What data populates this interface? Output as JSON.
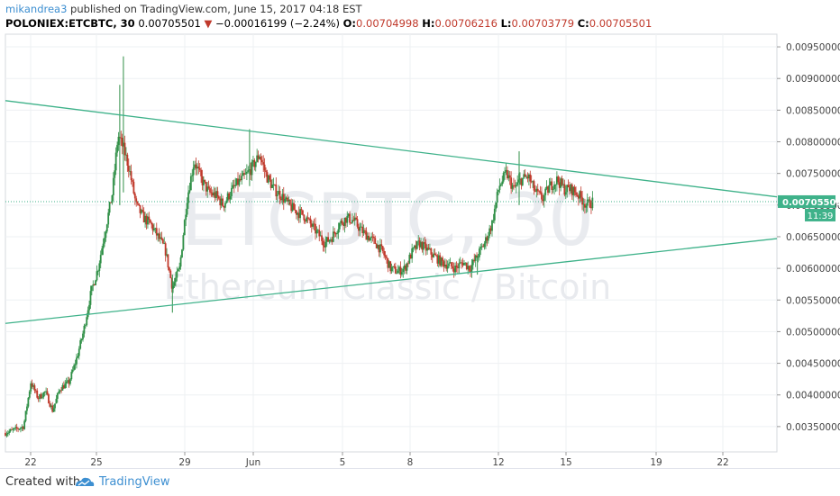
{
  "header": {
    "author": "mikandrea3",
    "published_text": " published on TradingView.com, June 15, 2017 04:18 EST",
    "symbol": "POLONIEX:ETCBTC, 30",
    "last": "0.00705501",
    "change_arrow": "▼",
    "change": "−0.00016199 (−2.24%)",
    "o_label": "O:",
    "o_value": "0.00704998",
    "h_label": "H:",
    "h_value": "0.00706216",
    "l_label": "L:",
    "l_value": "0.00703779",
    "c_label": "C:",
    "c_value": "0.00705501"
  },
  "watermark": {
    "ticker": "ETCBTC, 30",
    "pair": "Ethereum Classic / Bitcoin"
  },
  "footer": {
    "created_with": "Created with",
    "brand": "TradingView"
  },
  "colors": {
    "up": "#2f8f46",
    "down": "#c0392b",
    "trendline": "#3fb28a",
    "price_tag": "#3fb28a",
    "grid": "#eef0f3"
  },
  "chart_data": {
    "type": "candlestick",
    "ylim": [
      0.0031,
      0.0097
    ],
    "y_ticks": [
      "0.00950000",
      "0.00900000",
      "0.00850000",
      "0.00800000",
      "0.00750000",
      "0.00700000",
      "0.00650000",
      "0.00600000",
      "0.00550000",
      "0.00500000",
      "0.00450000",
      "0.00400000",
      "0.00350000"
    ],
    "x_ticks": [
      "22",
      "25",
      "29",
      "Jun",
      "5",
      "8",
      "12",
      "15",
      "19",
      "22"
    ],
    "last_price_label": "0.00705501",
    "countdown_label": "11:39",
    "last_price": 0.00705501,
    "trendlines": [
      {
        "name": "upper",
        "from": [
          0,
          0.00865
        ],
        "to": [
          1,
          0.00713
        ]
      },
      {
        "name": "lower",
        "from": [
          0,
          0.00513
        ],
        "to": [
          1,
          0.00647
        ]
      }
    ],
    "price_path": [
      [
        0.0,
        0.0034
      ],
      [
        2.0,
        0.0035
      ],
      [
        2.8,
        0.0042
      ],
      [
        3.6,
        0.00395
      ],
      [
        4.4,
        0.00405
      ],
      [
        5.2,
        0.00375
      ],
      [
        6.0,
        0.0041
      ],
      [
        7.0,
        0.0042
      ],
      [
        7.8,
        0.00455
      ],
      [
        8.6,
        0.005
      ],
      [
        9.4,
        0.0056
      ],
      [
        10.2,
        0.006
      ],
      [
        11.0,
        0.0066
      ],
      [
        11.8,
        0.0072
      ],
      [
        12.4,
        0.0081
      ],
      [
        13.0,
        0.0079
      ],
      [
        13.6,
        0.0076
      ],
      [
        14.4,
        0.007
      ],
      [
        15.2,
        0.0068
      ],
      [
        16.0,
        0.0067
      ],
      [
        16.8,
        0.0065
      ],
      [
        17.6,
        0.0063
      ],
      [
        18.4,
        0.0057
      ],
      [
        19.2,
        0.006
      ],
      [
        20.0,
        0.0071
      ],
      [
        20.8,
        0.0077
      ],
      [
        21.6,
        0.0074
      ],
      [
        22.4,
        0.0072
      ],
      [
        23.2,
        0.00715
      ],
      [
        24.0,
        0.007
      ],
      [
        24.8,
        0.0072
      ],
      [
        25.6,
        0.00735
      ],
      [
        26.4,
        0.00745
      ],
      [
        27.2,
        0.0076
      ],
      [
        28.0,
        0.0078
      ],
      [
        28.8,
        0.00745
      ],
      [
        29.6,
        0.00725
      ],
      [
        30.4,
        0.00715
      ],
      [
        31.2,
        0.007
      ],
      [
        32.0,
        0.0069
      ],
      [
        32.8,
        0.00685
      ],
      [
        33.6,
        0.0067
      ],
      [
        34.4,
        0.00655
      ],
      [
        35.2,
        0.0064
      ],
      [
        36.0,
        0.0065
      ],
      [
        36.8,
        0.0067
      ],
      [
        37.6,
        0.0068
      ],
      [
        38.4,
        0.00675
      ],
      [
        39.2,
        0.0066
      ],
      [
        40.0,
        0.0065
      ],
      [
        40.8,
        0.0064
      ],
      [
        41.6,
        0.00625
      ],
      [
        42.4,
        0.006
      ],
      [
        43.2,
        0.00595
      ],
      [
        44.0,
        0.006
      ],
      [
        44.8,
        0.00625
      ],
      [
        45.6,
        0.0064
      ],
      [
        46.4,
        0.0063
      ],
      [
        47.2,
        0.0062
      ],
      [
        48.0,
        0.0061
      ],
      [
        48.8,
        0.00605
      ],
      [
        49.6,
        0.006
      ],
      [
        50.4,
        0.0061
      ],
      [
        51.2,
        0.006
      ],
      [
        52.0,
        0.0062
      ],
      [
        52.8,
        0.0064
      ],
      [
        53.6,
        0.0067
      ],
      [
        54.4,
        0.0073
      ],
      [
        55.2,
        0.0075
      ],
      [
        56.0,
        0.00725
      ],
      [
        56.8,
        0.0074
      ],
      [
        57.6,
        0.00745
      ],
      [
        58.4,
        0.0072
      ],
      [
        59.2,
        0.0071
      ],
      [
        60.0,
        0.0073
      ],
      [
        60.8,
        0.0074
      ],
      [
        61.6,
        0.00725
      ],
      [
        62.4,
        0.00725
      ],
      [
        63.2,
        0.00715
      ],
      [
        64.0,
        0.007
      ],
      [
        64.8,
        0.00706
      ]
    ],
    "spikes": [
      {
        "t": 13.0,
        "high": 0.00935,
        "low": 0.0072
      },
      {
        "t": 12.6,
        "high": 0.0089,
        "low": 0.007
      },
      {
        "t": 18.4,
        "high": 0.0059,
        "low": 0.0053
      },
      {
        "t": 26.9,
        "high": 0.0082,
        "low": 0.0073
      },
      {
        "t": 56.6,
        "high": 0.00785,
        "low": 0.007
      },
      {
        "t": 52.0,
        "high": 0.0062,
        "low": 0.0059
      }
    ]
  }
}
